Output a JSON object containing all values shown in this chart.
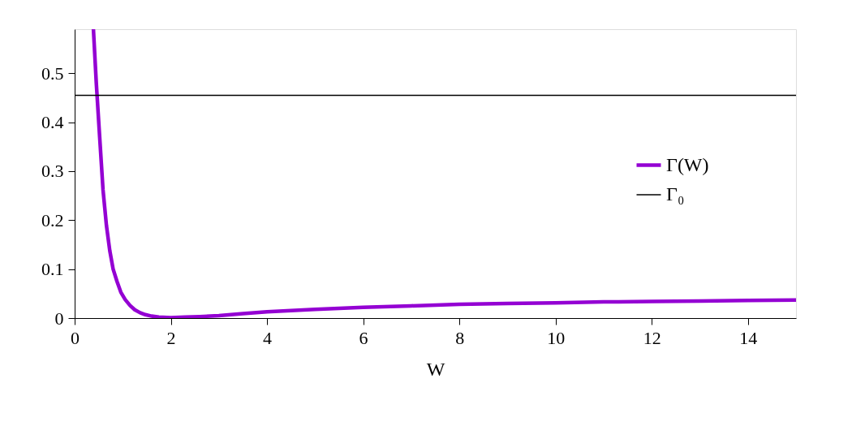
{
  "chart_data": {
    "type": "line",
    "xlabel": "W",
    "xlim": [
      0,
      15
    ],
    "ylim": [
      0,
      0.59
    ],
    "xticks": [
      0,
      2,
      4,
      6,
      8,
      10,
      12,
      14
    ],
    "yticks": [
      0,
      0.1,
      0.2,
      0.3,
      0.4,
      0.5
    ],
    "legend": "right",
    "grid": false,
    "marker": "none",
    "line_style": "solid",
    "series": [
      {
        "name": "Γ(W)",
        "color": "#9400d3",
        "x": [
          0.39,
          0.45,
          0.52,
          0.59,
          0.66,
          0.73,
          0.8,
          0.88,
          0.96,
          1.05,
          1.15,
          1.25,
          1.36,
          1.47,
          1.6,
          1.75,
          2.0,
          2.3,
          2.6,
          3.0,
          3.5,
          4.0,
          5.0,
          6.0,
          7.0,
          8.0,
          9.0,
          10.0,
          11.0,
          12.0,
          13.0,
          14.0,
          15.0
        ],
        "values": [
          0.59,
          0.48,
          0.37,
          0.262,
          0.19,
          0.138,
          0.1,
          0.075,
          0.053,
          0.038,
          0.026,
          0.017,
          0.011,
          0.007,
          0.004,
          0.002,
          0.001,
          0.002,
          0.003,
          0.005,
          0.009,
          0.013,
          0.018,
          0.022,
          0.025,
          0.028,
          0.03,
          0.031,
          0.033,
          0.034,
          0.035,
          0.036,
          0.037
        ]
      },
      {
        "name": "Γ₀",
        "color": "#000000",
        "x": [
          0,
          15
        ],
        "values": [
          0.455,
          0.455
        ]
      }
    ]
  }
}
